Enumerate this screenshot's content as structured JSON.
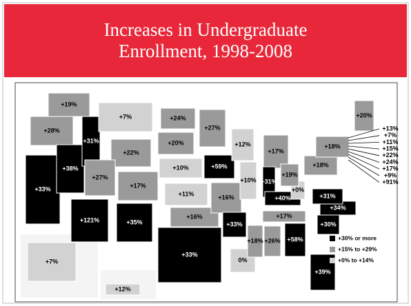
{
  "header": {
    "title_lines": [
      "Increases in Undergraduate",
      "Enrollment, 1998-2008"
    ]
  },
  "map": {
    "regions": [
      {
        "label": "+19%",
        "color": "#9a9a9a"
      },
      {
        "label": "+28%",
        "color": "#9a9a9a"
      },
      {
        "label": "+33%",
        "color": "#000000"
      },
      {
        "label": "+38%",
        "color": "#000000"
      },
      {
        "label": "+31%",
        "color": "#000000"
      },
      {
        "label": "+7%",
        "color": "#d2d2d2"
      },
      {
        "label": "+22%",
        "color": "#9a9a9a"
      },
      {
        "label": "+27%",
        "color": "#9a9a9a"
      },
      {
        "label": "+121%",
        "color": "#000000"
      },
      {
        "label": "+17%",
        "color": "#9a9a9a"
      },
      {
        "label": "+35%",
        "color": "#000000"
      },
      {
        "label": "+24%",
        "color": "#9a9a9a"
      },
      {
        "label": "+20%",
        "color": "#9a9a9a"
      },
      {
        "label": "+10%",
        "color": "#d2d2d2"
      },
      {
        "label": "+11%",
        "color": "#d2d2d2"
      },
      {
        "label": "+16%",
        "color": "#9a9a9a"
      },
      {
        "label": "+33%",
        "color": "#000000"
      },
      {
        "label": "+27%",
        "color": "#9a9a9a"
      },
      {
        "label": "+59%",
        "color": "#000000"
      },
      {
        "label": "+16%",
        "color": "#9a9a9a"
      },
      {
        "label": "+33%",
        "color": "#000000"
      },
      {
        "label": "0%",
        "color": "#d2d2d2"
      },
      {
        "label": "+12%",
        "color": "#d2d2d2"
      },
      {
        "label": "+10%",
        "color": "#d2d2d2"
      },
      {
        "label": "+18%",
        "color": "#9a9a9a"
      },
      {
        "label": "+17%",
        "color": "#9a9a9a"
      },
      {
        "label": "+31%",
        "color": "#000000"
      },
      {
        "label": "+40%",
        "color": "#000000"
      },
      {
        "label": "+17%",
        "color": "#9a9a9a"
      },
      {
        "label": "+26%",
        "color": "#9a9a9a"
      },
      {
        "label": "+58%",
        "color": "#000000"
      },
      {
        "label": "+39%",
        "color": "#000000"
      },
      {
        "label": "+30%",
        "color": "#000000"
      },
      {
        "label": "+34%",
        "color": "#000000"
      },
      {
        "label": "+31%",
        "color": "#000000"
      },
      {
        "label": "+0%",
        "color": "#d2d2d2"
      },
      {
        "label": "+19%",
        "color": "#9a9a9a"
      },
      {
        "label": "+18%",
        "color": "#9a9a9a"
      },
      {
        "label": "+18%",
        "color": "#9a9a9a"
      },
      {
        "label": "+20%",
        "color": "#9a9a9a"
      },
      {
        "label": "+7%",
        "color": "#d2d2d2"
      },
      {
        "label": "+12%",
        "color": "#d2d2d2"
      }
    ],
    "small_states": [
      "+13%",
      "+7%",
      "+11%",
      "+15%",
      "+22%",
      "+24%",
      "+17%",
      "+9%",
      "+91%"
    ],
    "legend": [
      {
        "label": "+30% or more",
        "color": "#000000"
      },
      {
        "label": "+15% to +29%",
        "color": "#9a9a9a"
      },
      {
        "label": "+0% to +14%",
        "color": "#d2d2d2"
      }
    ]
  }
}
